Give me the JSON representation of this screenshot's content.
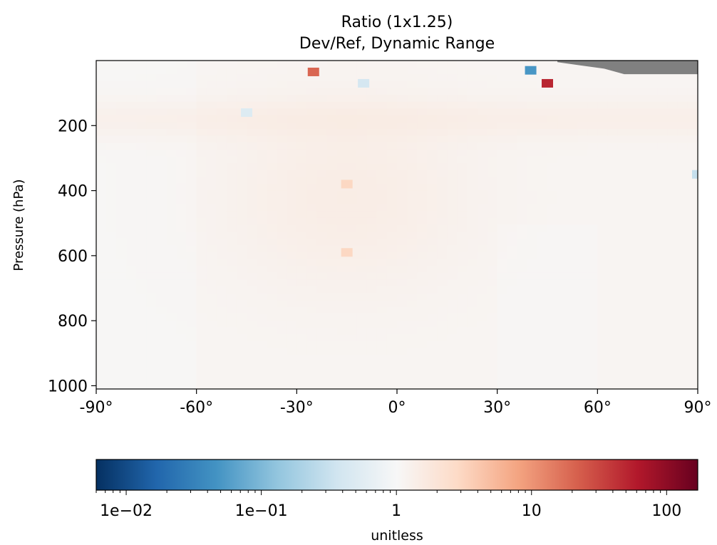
{
  "chart_data": [
    {
      "type": "heatmap",
      "title": "Ratio (1x1.25)",
      "subtitle": "Dev/Ref, Dynamic Range",
      "xlabel": "",
      "ylabel": "Pressure (hPa)",
      "xlim": [
        -90,
        90
      ],
      "ylim": [
        1010,
        0
      ],
      "x_ticks": [
        -90,
        -60,
        -30,
        0,
        30,
        60,
        90
      ],
      "x_tick_labels": [
        "-90°",
        "-60°",
        "-30°",
        "0°",
        "30°",
        "60°",
        "90°"
      ],
      "y_ticks": [
        200,
        400,
        600,
        800,
        1000
      ],
      "y_tick_labels": [
        "200",
        "400",
        "600",
        "800",
        "1000"
      ],
      "y_scale": "linear",
      "masked_region": "upper-right (high latitudes, lowest pressures) shown in gray",
      "dominant_value": "ratio slightly above 1 (light orange) across most of the domain",
      "features": [
        {
          "lat": 40,
          "pressure": 30,
          "value": 0.05
        },
        {
          "lat": 45,
          "pressure": 70,
          "value": 50
        },
        {
          "lat": -25,
          "pressure": 35,
          "value": 20
        },
        {
          "lat": 90,
          "pressure": 350,
          "value": 0.3
        },
        {
          "lat": -45,
          "pressure": 160,
          "value": 0.5
        },
        {
          "lat": -10,
          "pressure": 70,
          "value": 0.4
        },
        {
          "lat": -15,
          "pressure": 380,
          "value": 3
        },
        {
          "lat": -15,
          "pressure": 590,
          "value": 3
        }
      ]
    },
    {
      "type": "colorbar",
      "label": "unitless",
      "scale": "log",
      "range": [
        0.006,
        170
      ],
      "colormap": "RdBu_r",
      "tick_values": [
        0.01,
        0.1,
        1,
        10,
        100
      ],
      "tick_labels": [
        "1e−02",
        "1e−01",
        "1",
        "10",
        "100"
      ]
    }
  ]
}
